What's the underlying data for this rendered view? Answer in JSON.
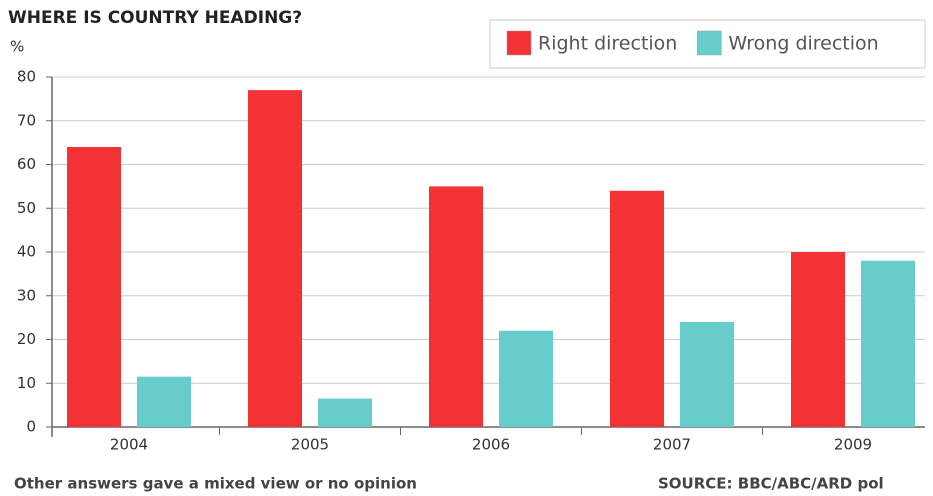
{
  "chart_data": {
    "type": "bar",
    "title": "WHERE IS COUNTRY HEADING?",
    "y_label": "%",
    "categories": [
      "2004",
      "2005",
      "2006",
      "2007",
      "2009"
    ],
    "series": [
      {
        "name": "Right direction",
        "color": "#f23235",
        "values": [
          64,
          77,
          55,
          54,
          40
        ]
      },
      {
        "name": "Wrong direction",
        "color": "#66cccc",
        "values": [
          11.5,
          6.5,
          22,
          24,
          38
        ]
      }
    ],
    "ylim": [
      0,
      80
    ],
    "yticks": [
      0,
      10,
      20,
      30,
      40,
      50,
      60,
      70,
      80
    ],
    "grid": true,
    "legend": "top-right",
    "note": "Other answers gave a mixed view or no opinion",
    "source": "SOURCE: BBC/ABC/ARD pol"
  }
}
